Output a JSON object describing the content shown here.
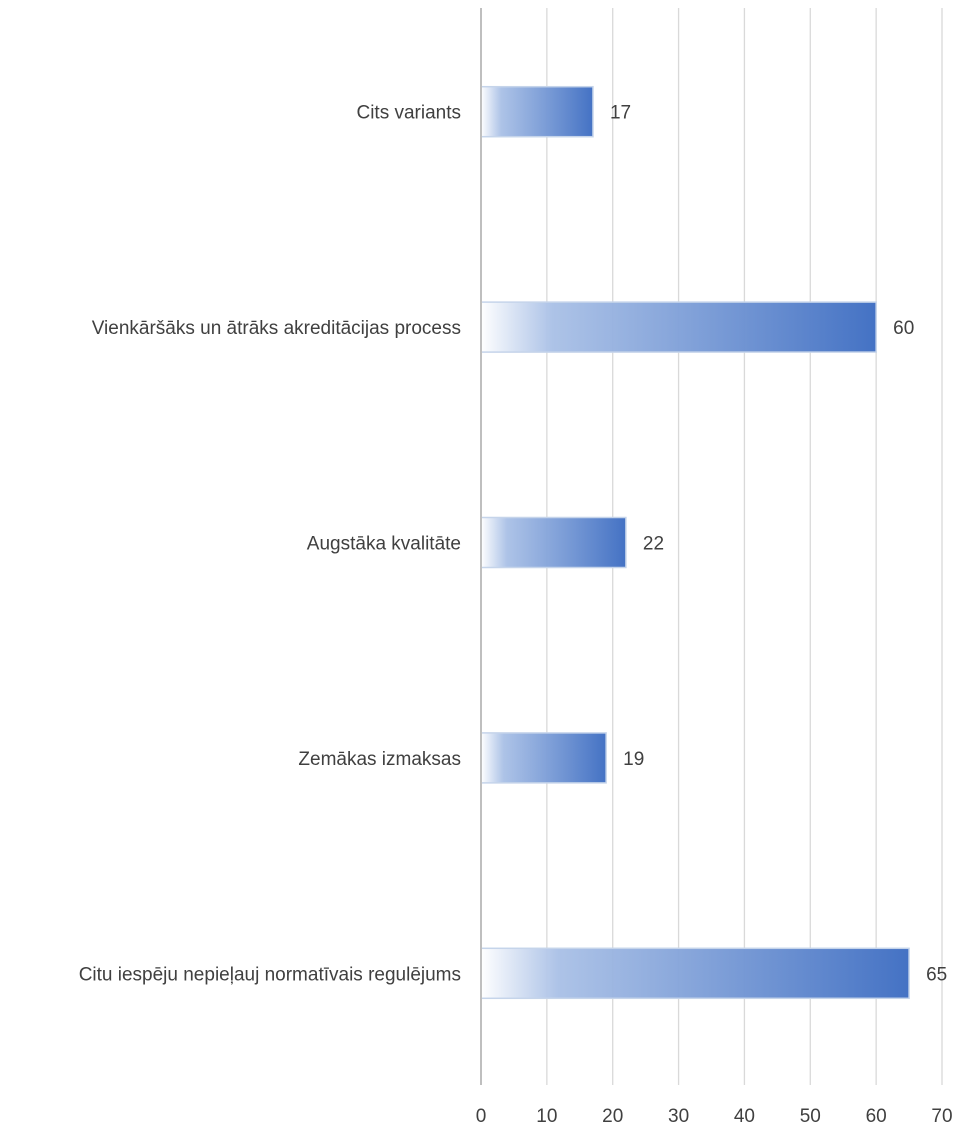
{
  "chart_data": {
    "type": "bar",
    "orientation": "horizontal",
    "title": "",
    "xlabel": "",
    "ylabel": "",
    "categories": [
      "Cits variants",
      "Vienkāršāks un ātrāks akreditācijas process",
      "Augstāka kvalitāte",
      "Zemākas izmaksas",
      "Citu iespēju nepieļauj normatīvais regulējums"
    ],
    "values": [
      17,
      60,
      22,
      19,
      65
    ],
    "data_labels": [
      "17",
      "60",
      "22",
      "19",
      "65"
    ],
    "xlim": [
      0,
      70
    ],
    "x_ticks": [
      0,
      10,
      20,
      30,
      40,
      50,
      60,
      70
    ],
    "x_tick_labels": [
      "0",
      "10",
      "20",
      "30",
      "40",
      "50",
      "60",
      "70"
    ],
    "grid": "vertical",
    "legend": "none",
    "bar_fill": "gradient white to blue",
    "colors": {
      "bar_start": "#ffffff",
      "bar_end": "#4472c4",
      "bar_border": "#c5d4ea",
      "grid": "#d9d9d9",
      "axis": "#bfbfbf",
      "text": "#404040"
    }
  }
}
